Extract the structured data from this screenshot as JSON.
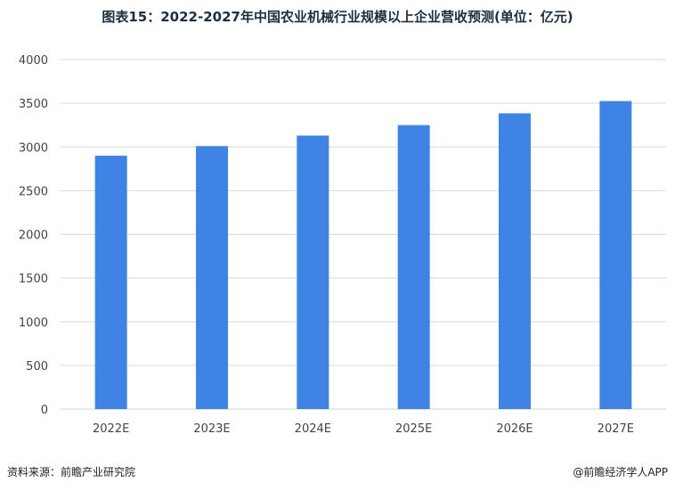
{
  "chart_data": {
    "type": "bar",
    "title": "图表15：2022-2027年中国农业机械行业规模以上企业营收预测(单位：亿元)",
    "categories": [
      "2022E",
      "2023E",
      "2024E",
      "2025E",
      "2026E",
      "2027E"
    ],
    "values": [
      2900,
      3010,
      3130,
      3250,
      3385,
      3525
    ],
    "xlabel": "",
    "ylabel": "",
    "ylim": [
      0,
      4000
    ],
    "yticks": [
      0,
      500,
      1000,
      1500,
      2000,
      2500,
      3000,
      3500,
      4000
    ],
    "grid": true,
    "legend": "none",
    "bar_color": "#3f84e5",
    "grid_color": "#d9d9d9"
  },
  "footer": {
    "source": "资料来源：前瞻产业研究院",
    "brand": "@前瞻经济学人APP"
  }
}
